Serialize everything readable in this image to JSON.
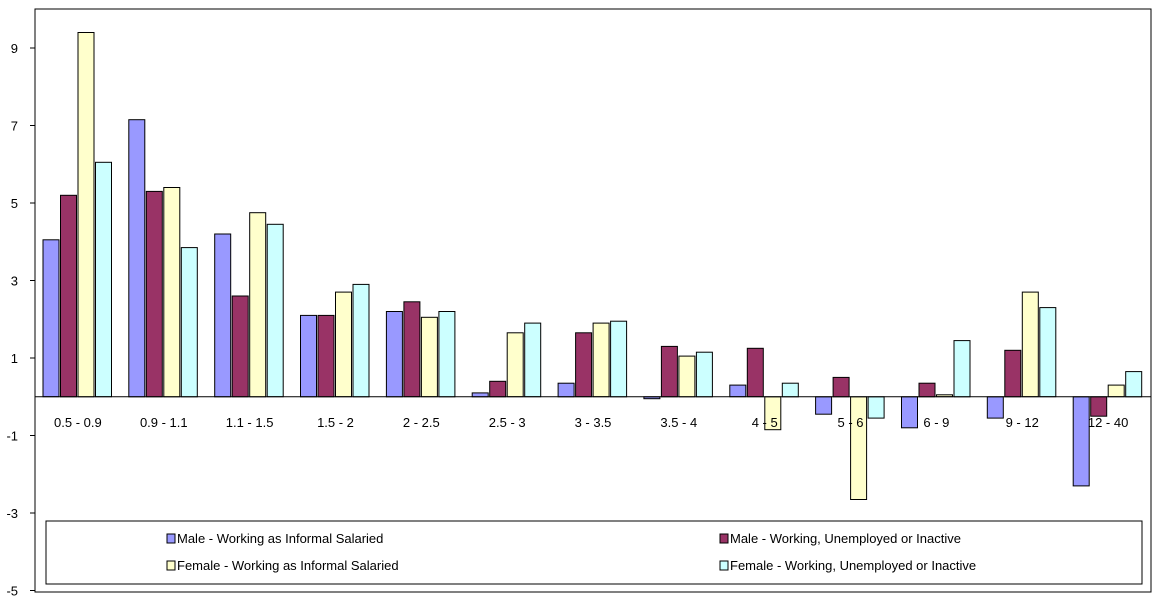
{
  "chart_data": {
    "type": "bar",
    "title": "",
    "xlabel": "",
    "ylabel": "",
    "ylim": [
      -5,
      10
    ],
    "yticks": [
      9,
      7,
      5,
      3,
      1,
      -1,
      -3,
      -5
    ],
    "grid": false,
    "legend_position": "bottom",
    "categories": [
      "0.5 - 0.9",
      "0.9 - 1.1",
      "1.1 - 1.5",
      "1.5 - 2",
      "2 - 2.5",
      "2.5 - 3",
      "3 - 3.5",
      "3.5 - 4",
      "4 - 5",
      "5 - 6",
      "6 - 9",
      "9 - 12",
      "12 - 40"
    ],
    "series": [
      {
        "name": "Male - Working as Informal Salaried",
        "color": "#9999ff",
        "values": [
          4.05,
          7.15,
          4.2,
          2.1,
          2.2,
          0.1,
          0.35,
          -0.05,
          0.3,
          -0.45,
          -0.8,
          -0.55,
          -2.3
        ]
      },
      {
        "name": "Male - Working, Unemployed or Inactive",
        "color": "#993366",
        "values": [
          5.2,
          5.3,
          2.6,
          2.1,
          2.45,
          0.4,
          1.65,
          1.3,
          1.25,
          0.5,
          0.35,
          1.2,
          -0.5
        ]
      },
      {
        "name": "Female - Working as Informal Salaried",
        "color": "#ffffcc",
        "values": [
          9.4,
          5.4,
          4.75,
          2.7,
          2.05,
          1.65,
          1.9,
          1.05,
          -0.85,
          -2.65,
          0.05,
          2.7,
          0.3
        ]
      },
      {
        "name": "Female - Working, Unemployed or Inactive",
        "color": "#ccffff",
        "values": [
          6.05,
          3.85,
          4.45,
          2.9,
          2.2,
          1.9,
          1.95,
          1.15,
          0.35,
          -0.55,
          1.45,
          2.3,
          0.65
        ]
      }
    ]
  }
}
